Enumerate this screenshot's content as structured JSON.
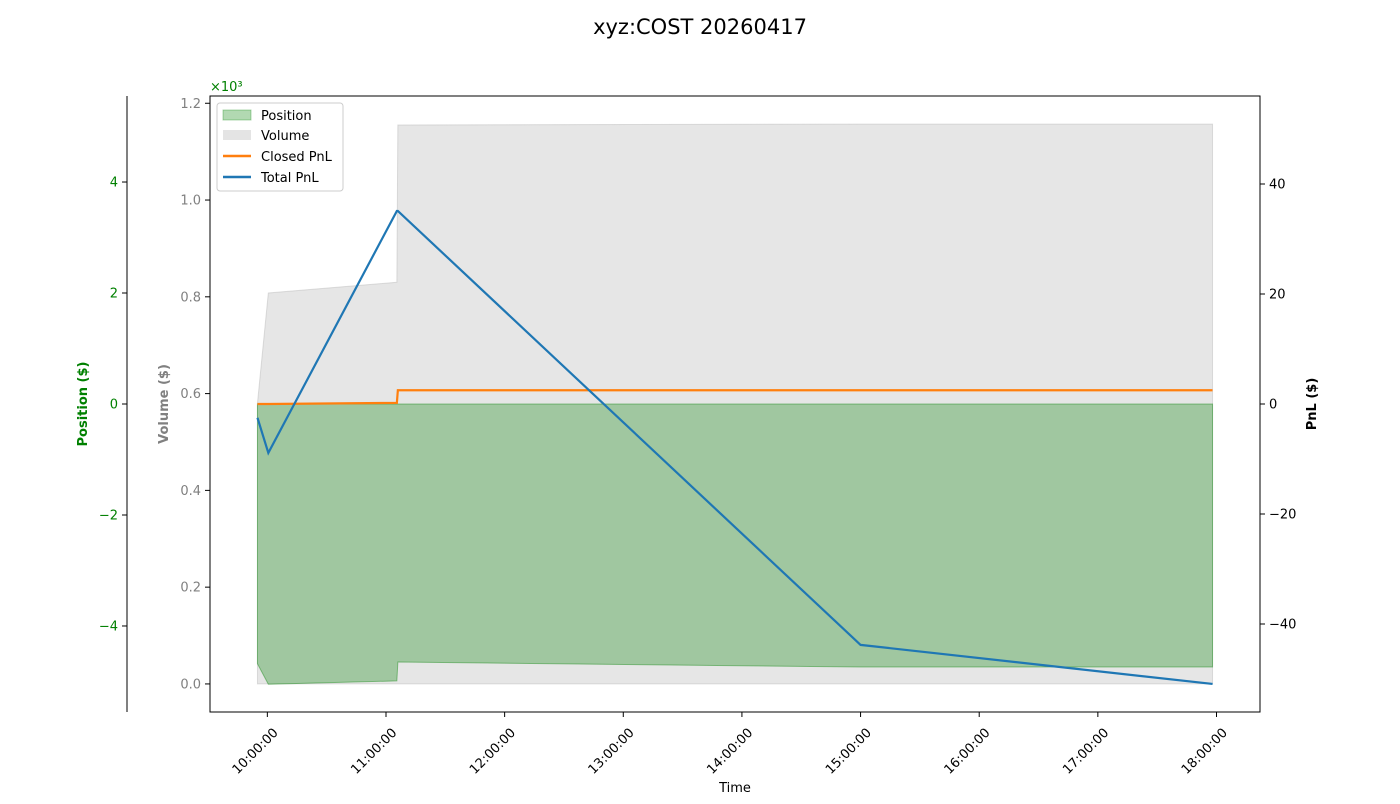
{
  "chart_data": {
    "type": "area",
    "title": "xyz:COST 20260417",
    "xlabel": "Time",
    "x_ticks": [
      "10:00:00",
      "11:00:00",
      "12:00:00",
      "13:00:00",
      "14:00:00",
      "15:00:00",
      "16:00:00",
      "17:00:00",
      "18:00:00"
    ],
    "x": [
      "09:55:00",
      "10:00:30",
      "11:05:30",
      "11:06:00",
      "15:00:00",
      "17:58:00"
    ],
    "xlim": [
      "09:31:00",
      "18:22:00"
    ],
    "axes": {
      "position": {
        "label": "Position ($)",
        "multiplier": "×10³",
        "ticks": [
          "4",
          "2",
          "0",
          "−2",
          "−4"
        ],
        "tick_values": [
          4,
          2,
          0,
          -2,
          -4
        ],
        "ylim": [
          -5.55,
          5.55
        ],
        "color": "#008000"
      },
      "volume": {
        "label": "Volume ($)",
        "ticks": [
          "0.0",
          "0.2",
          "0.4",
          "0.6",
          "0.8",
          "1.0",
          "1.2"
        ],
        "tick_values": [
          0,
          0.2,
          0.4,
          0.6,
          0.8,
          1.0,
          1.2
        ],
        "ylim": [
          -0.058,
          1.215
        ],
        "color": "#808080"
      },
      "pnl": {
        "label": "PnL ($)",
        "ticks": [
          "40",
          "20",
          "0",
          "−20",
          "−40"
        ],
        "tick_values": [
          40,
          20,
          0,
          -20,
          -40
        ],
        "ylim": [
          -56,
          56
        ],
        "color": "#000000"
      }
    },
    "series": [
      {
        "name": "Position",
        "kind": "fill",
        "axis": "position",
        "color": "#008000",
        "values": [
          -4.68,
          -5.05,
          -4.99,
          -4.65,
          -4.74,
          -4.74
        ]
      },
      {
        "name": "Volume",
        "kind": "fill",
        "axis": "volume",
        "color": "#808080",
        "values": [
          0.58,
          0.808,
          0.83,
          1.155,
          1.157,
          1.157
        ]
      },
      {
        "name": "Closed PnL",
        "kind": "line",
        "axis": "pnl",
        "color": "#ff7f0e",
        "values": [
          0,
          0,
          0.2,
          2.5,
          2.5,
          2.5
        ]
      },
      {
        "name": "Total PnL",
        "kind": "line",
        "axis": "pnl",
        "color": "#1f77b4",
        "values": [
          -2.5,
          -8.9,
          35.1,
          35.1,
          -43.8,
          -50.9
        ]
      }
    ],
    "legend": {
      "placement": "upper-left",
      "entries": [
        "Position",
        "Volume",
        "Closed PnL",
        "Total PnL"
      ]
    },
    "grid": false
  }
}
